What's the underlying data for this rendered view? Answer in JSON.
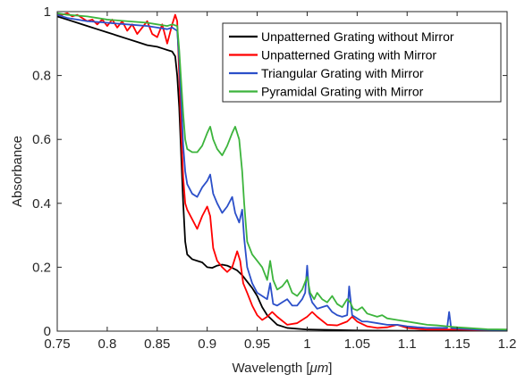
{
  "chart_data": {
    "type": "line",
    "title": "",
    "xlabel_main": "Wavelength [",
    "xlabel_unit": "μm",
    "xlabel_end": "]",
    "ylabel": "Absorbance",
    "xlim": [
      0.75,
      1.2
    ],
    "ylim": [
      0,
      1
    ],
    "x_ticks": [
      0.75,
      0.8,
      0.85,
      0.9,
      0.95,
      1,
      1.05,
      1.1,
      1.15,
      1.2
    ],
    "x_tick_labels": [
      "0.75",
      "0.8",
      "0.85",
      "0.9",
      "0.95",
      "1",
      "1.05",
      "1.1",
      "1.15",
      "1.2"
    ],
    "y_ticks": [
      0,
      0.2,
      0.4,
      0.6,
      0.8,
      1
    ],
    "y_tick_labels": [
      "0",
      "0.2",
      "0.4",
      "0.6",
      "0.8",
      "1"
    ],
    "grid": false,
    "legend_position": "top-right",
    "series": [
      {
        "name": "Unpatterned Grating without Mirror",
        "color": "#000000",
        "points": [
          [
            0.75,
            0.985
          ],
          [
            0.76,
            0.975
          ],
          [
            0.77,
            0.965
          ],
          [
            0.78,
            0.955
          ],
          [
            0.79,
            0.945
          ],
          [
            0.8,
            0.935
          ],
          [
            0.81,
            0.925
          ],
          [
            0.82,
            0.915
          ],
          [
            0.83,
            0.905
          ],
          [
            0.84,
            0.895
          ],
          [
            0.85,
            0.89
          ],
          [
            0.855,
            0.885
          ],
          [
            0.86,
            0.88
          ],
          [
            0.865,
            0.875
          ],
          [
            0.868,
            0.86
          ],
          [
            0.87,
            0.8
          ],
          [
            0.872,
            0.7
          ],
          [
            0.874,
            0.55
          ],
          [
            0.876,
            0.4
          ],
          [
            0.878,
            0.28
          ],
          [
            0.88,
            0.24
          ],
          [
            0.885,
            0.225
          ],
          [
            0.89,
            0.22
          ],
          [
            0.895,
            0.215
          ],
          [
            0.9,
            0.2
          ],
          [
            0.905,
            0.198
          ],
          [
            0.91,
            0.205
          ],
          [
            0.915,
            0.208
          ],
          [
            0.92,
            0.205
          ],
          [
            0.925,
            0.198
          ],
          [
            0.93,
            0.19
          ],
          [
            0.935,
            0.175
          ],
          [
            0.94,
            0.155
          ],
          [
            0.945,
            0.135
          ],
          [
            0.95,
            0.11
          ],
          [
            0.955,
            0.075
          ],
          [
            0.96,
            0.05
          ],
          [
            0.97,
            0.02
          ],
          [
            0.98,
            0.01
          ],
          [
            1.0,
            0.005
          ],
          [
            1.05,
            0.002
          ],
          [
            1.1,
            0.001
          ],
          [
            1.2,
            0.0
          ]
        ]
      },
      {
        "name": "Unpatterned Grating with Mirror",
        "color": "#ff0000",
        "points": [
          [
            0.75,
            0.99
          ],
          [
            0.755,
            0.99
          ],
          [
            0.76,
            0.995
          ],
          [
            0.765,
            0.985
          ],
          [
            0.77,
            0.99
          ],
          [
            0.78,
            0.97
          ],
          [
            0.785,
            0.975
          ],
          [
            0.79,
            0.96
          ],
          [
            0.795,
            0.975
          ],
          [
            0.8,
            0.955
          ],
          [
            0.805,
            0.975
          ],
          [
            0.81,
            0.95
          ],
          [
            0.815,
            0.97
          ],
          [
            0.82,
            0.94
          ],
          [
            0.825,
            0.96
          ],
          [
            0.83,
            0.93
          ],
          [
            0.835,
            0.95
          ],
          [
            0.84,
            0.97
          ],
          [
            0.845,
            0.93
          ],
          [
            0.85,
            0.92
          ],
          [
            0.855,
            0.96
          ],
          [
            0.86,
            0.9
          ],
          [
            0.865,
            0.96
          ],
          [
            0.868,
            0.99
          ],
          [
            0.87,
            0.97
          ],
          [
            0.872,
            0.8
          ],
          [
            0.874,
            0.62
          ],
          [
            0.876,
            0.48
          ],
          [
            0.878,
            0.4
          ],
          [
            0.88,
            0.38
          ],
          [
            0.885,
            0.35
          ],
          [
            0.89,
            0.32
          ],
          [
            0.895,
            0.36
          ],
          [
            0.9,
            0.39
          ],
          [
            0.903,
            0.36
          ],
          [
            0.906,
            0.26
          ],
          [
            0.91,
            0.22
          ],
          [
            0.915,
            0.2
          ],
          [
            0.92,
            0.185
          ],
          [
            0.925,
            0.2
          ],
          [
            0.93,
            0.25
          ],
          [
            0.933,
            0.22
          ],
          [
            0.936,
            0.15
          ],
          [
            0.94,
            0.12
          ],
          [
            0.945,
            0.08
          ],
          [
            0.95,
            0.05
          ],
          [
            0.955,
            0.035
          ],
          [
            0.96,
            0.045
          ],
          [
            0.965,
            0.06
          ],
          [
            0.97,
            0.045
          ],
          [
            0.98,
            0.02
          ],
          [
            0.99,
            0.025
          ],
          [
            1.0,
            0.045
          ],
          [
            1.005,
            0.06
          ],
          [
            1.01,
            0.045
          ],
          [
            1.02,
            0.02
          ],
          [
            1.03,
            0.018
          ],
          [
            1.04,
            0.03
          ],
          [
            1.045,
            0.045
          ],
          [
            1.05,
            0.03
          ],
          [
            1.06,
            0.015
          ],
          [
            1.07,
            0.01
          ],
          [
            1.08,
            0.012
          ],
          [
            1.09,
            0.02
          ],
          [
            1.1,
            0.01
          ],
          [
            1.12,
            0.005
          ],
          [
            1.15,
            0.005
          ],
          [
            1.2,
            0.002
          ]
        ]
      },
      {
        "name": "Triangular Grating with Mirror",
        "color": "#2b4fc9",
        "points": [
          [
            0.75,
            0.99
          ],
          [
            0.76,
            0.98
          ],
          [
            0.78,
            0.97
          ],
          [
            0.8,
            0.965
          ],
          [
            0.82,
            0.96
          ],
          [
            0.84,
            0.955
          ],
          [
            0.85,
            0.95
          ],
          [
            0.86,
            0.945
          ],
          [
            0.865,
            0.95
          ],
          [
            0.87,
            0.94
          ],
          [
            0.872,
            0.85
          ],
          [
            0.874,
            0.72
          ],
          [
            0.876,
            0.58
          ],
          [
            0.878,
            0.5
          ],
          [
            0.88,
            0.46
          ],
          [
            0.885,
            0.43
          ],
          [
            0.89,
            0.42
          ],
          [
            0.895,
            0.45
          ],
          [
            0.9,
            0.47
          ],
          [
            0.903,
            0.49
          ],
          [
            0.906,
            0.43
          ],
          [
            0.91,
            0.4
          ],
          [
            0.915,
            0.37
          ],
          [
            0.92,
            0.39
          ],
          [
            0.925,
            0.42
          ],
          [
            0.928,
            0.37
          ],
          [
            0.932,
            0.34
          ],
          [
            0.935,
            0.38
          ],
          [
            0.937,
            0.29
          ],
          [
            0.94,
            0.2
          ],
          [
            0.945,
            0.15
          ],
          [
            0.95,
            0.12
          ],
          [
            0.955,
            0.11
          ],
          [
            0.96,
            0.1
          ],
          [
            0.963,
            0.15
          ],
          [
            0.966,
            0.085
          ],
          [
            0.97,
            0.08
          ],
          [
            0.975,
            0.09
          ],
          [
            0.98,
            0.1
          ],
          [
            0.985,
            0.08
          ],
          [
            0.99,
            0.08
          ],
          [
            0.995,
            0.1
          ],
          [
            0.998,
            0.12
          ],
          [
            1.0,
            0.205
          ],
          [
            1.002,
            0.12
          ],
          [
            1.005,
            0.09
          ],
          [
            1.01,
            0.07
          ],
          [
            1.015,
            0.075
          ],
          [
            1.02,
            0.08
          ],
          [
            1.025,
            0.06
          ],
          [
            1.03,
            0.05
          ],
          [
            1.035,
            0.045
          ],
          [
            1.04,
            0.05
          ],
          [
            1.042,
            0.14
          ],
          [
            1.045,
            0.05
          ],
          [
            1.05,
            0.04
          ],
          [
            1.055,
            0.03
          ],
          [
            1.06,
            0.03
          ],
          [
            1.07,
            0.025
          ],
          [
            1.08,
            0.02
          ],
          [
            1.09,
            0.02
          ],
          [
            1.1,
            0.015
          ],
          [
            1.11,
            0.012
          ],
          [
            1.12,
            0.01
          ],
          [
            1.13,
            0.01
          ],
          [
            1.14,
            0.01
          ],
          [
            1.142,
            0.06
          ],
          [
            1.144,
            0.01
          ],
          [
            1.15,
            0.008
          ],
          [
            1.17,
            0.005
          ],
          [
            1.2,
            0.003
          ]
        ]
      },
      {
        "name": "Pyramidal Grating with Mirror",
        "color": "#3cb43c",
        "points": [
          [
            0.75,
            0.995
          ],
          [
            0.76,
            0.99
          ],
          [
            0.78,
            0.985
          ],
          [
            0.8,
            0.975
          ],
          [
            0.82,
            0.97
          ],
          [
            0.84,
            0.965
          ],
          [
            0.85,
            0.96
          ],
          [
            0.86,
            0.955
          ],
          [
            0.865,
            0.96
          ],
          [
            0.87,
            0.955
          ],
          [
            0.872,
            0.88
          ],
          [
            0.874,
            0.78
          ],
          [
            0.876,
            0.68
          ],
          [
            0.878,
            0.6
          ],
          [
            0.88,
            0.57
          ],
          [
            0.885,
            0.56
          ],
          [
            0.89,
            0.56
          ],
          [
            0.895,
            0.58
          ],
          [
            0.9,
            0.62
          ],
          [
            0.903,
            0.64
          ],
          [
            0.906,
            0.6
          ],
          [
            0.91,
            0.57
          ],
          [
            0.915,
            0.55
          ],
          [
            0.92,
            0.58
          ],
          [
            0.925,
            0.62
          ],
          [
            0.928,
            0.64
          ],
          [
            0.932,
            0.6
          ],
          [
            0.935,
            0.5
          ],
          [
            0.937,
            0.4
          ],
          [
            0.94,
            0.28
          ],
          [
            0.945,
            0.24
          ],
          [
            0.95,
            0.22
          ],
          [
            0.955,
            0.2
          ],
          [
            0.96,
            0.16
          ],
          [
            0.963,
            0.22
          ],
          [
            0.966,
            0.16
          ],
          [
            0.97,
            0.13
          ],
          [
            0.975,
            0.14
          ],
          [
            0.98,
            0.16
          ],
          [
            0.985,
            0.12
          ],
          [
            0.99,
            0.11
          ],
          [
            0.995,
            0.13
          ],
          [
            1.0,
            0.17
          ],
          [
            1.003,
            0.12
          ],
          [
            1.007,
            0.1
          ],
          [
            1.01,
            0.12
          ],
          [
            1.015,
            0.1
          ],
          [
            1.02,
            0.09
          ],
          [
            1.025,
            0.11
          ],
          [
            1.03,
            0.085
          ],
          [
            1.035,
            0.075
          ],
          [
            1.04,
            0.1
          ],
          [
            1.043,
            0.09
          ],
          [
            1.046,
            0.07
          ],
          [
            1.05,
            0.065
          ],
          [
            1.055,
            0.075
          ],
          [
            1.06,
            0.055
          ],
          [
            1.07,
            0.045
          ],
          [
            1.075,
            0.05
          ],
          [
            1.08,
            0.04
          ],
          [
            1.09,
            0.035
          ],
          [
            1.1,
            0.03
          ],
          [
            1.11,
            0.025
          ],
          [
            1.12,
            0.02
          ],
          [
            1.13,
            0.018
          ],
          [
            1.14,
            0.015
          ],
          [
            1.15,
            0.012
          ],
          [
            1.16,
            0.01
          ],
          [
            1.18,
            0.006
          ],
          [
            1.2,
            0.005
          ]
        ]
      }
    ]
  }
}
